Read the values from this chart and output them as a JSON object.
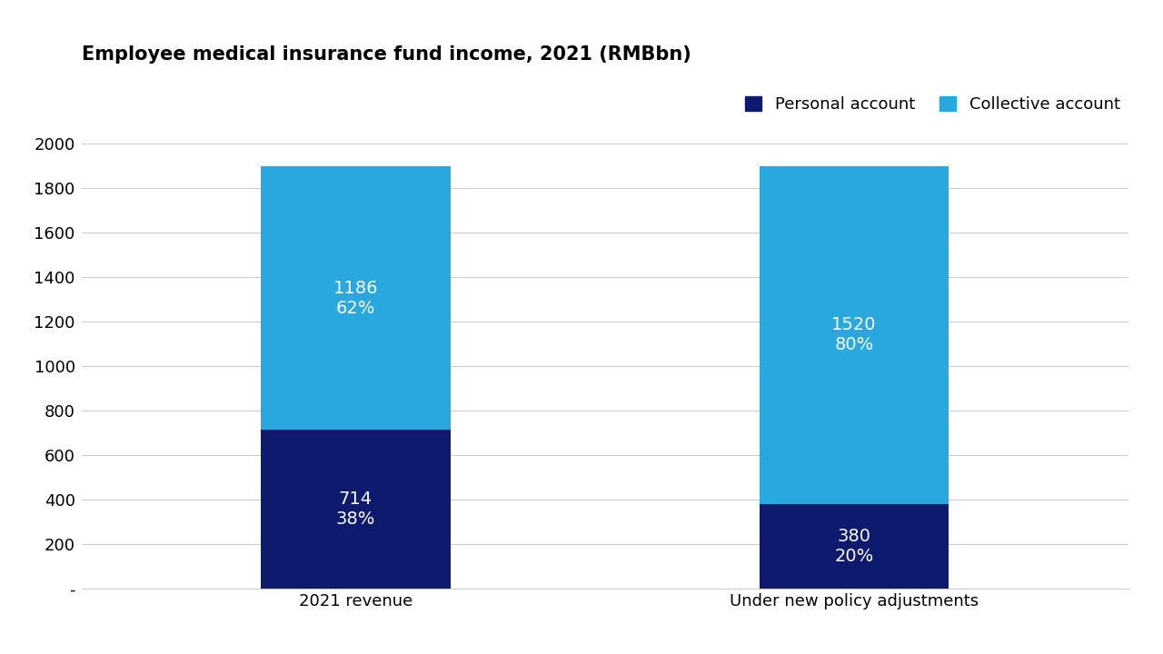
{
  "title": "Employee medical insurance fund income, 2021 (RMBbn)",
  "categories": [
    "2021 revenue",
    "Under new policy adjustments"
  ],
  "personal_account": [
    714,
    380
  ],
  "collective_account": [
    1186,
    1520
  ],
  "personal_pct": [
    "38%",
    "20%"
  ],
  "collective_pct": [
    "62%",
    "80%"
  ],
  "personal_color": "#0d1a6e",
  "collective_color": "#29a8e0",
  "legend_personal": "Personal account",
  "legend_collective": "Collective account",
  "ylim": [
    0,
    2000
  ],
  "yticks": [
    0,
    200,
    400,
    600,
    800,
    1000,
    1200,
    1400,
    1600,
    1800,
    2000
  ],
  "ytick_labels": [
    "-",
    "200",
    "400",
    "600",
    "800",
    "1000",
    "1200",
    "1400",
    "1600",
    "1800",
    "2000"
  ],
  "background_color": "#ffffff",
  "bar_width": 0.38,
  "title_fontsize": 15,
  "tick_fontsize": 13,
  "legend_fontsize": 13,
  "annotation_fontsize": 14
}
